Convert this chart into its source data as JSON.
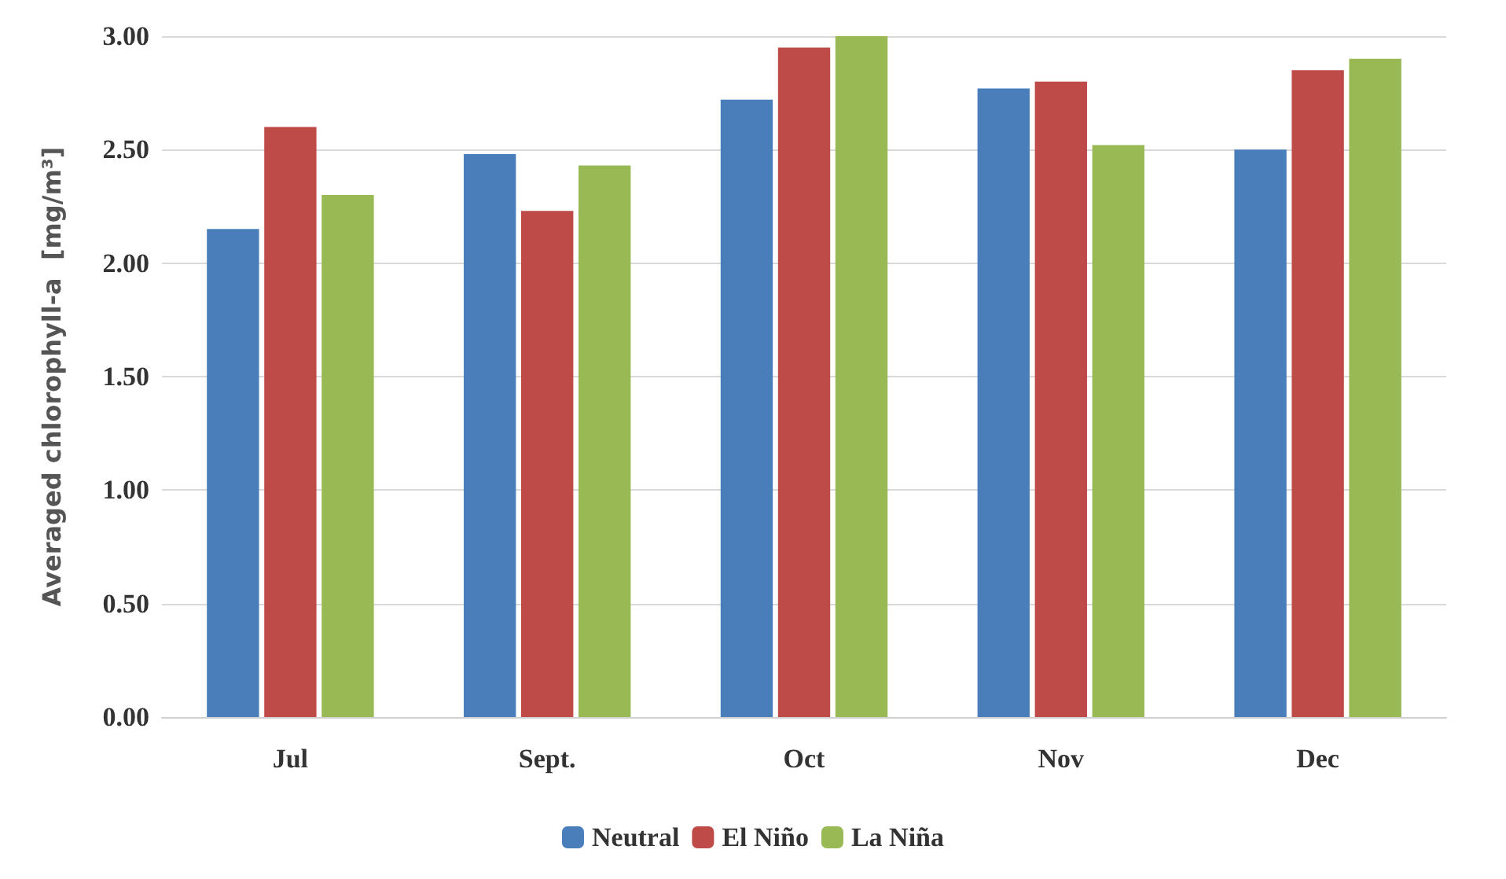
{
  "chart_data": {
    "type": "bar",
    "ylabel": "Averaged chlorophyll-a  [mg/m³]",
    "categories": [
      "Jul",
      "Sept.",
      "Oct",
      "Nov",
      "Dec"
    ],
    "series": [
      {
        "name": "Neutral",
        "color": "#4a7ebb",
        "values": [
          2.15,
          2.48,
          2.72,
          2.77,
          2.5
        ]
      },
      {
        "name": "El Niño",
        "color": "#be4b48",
        "values": [
          2.6,
          2.23,
          2.95,
          2.8,
          2.85
        ]
      },
      {
        "name": "La Niña",
        "color": "#98b954",
        "values": [
          2.3,
          2.43,
          3.0,
          2.52,
          2.9
        ]
      }
    ],
    "ylim": [
      0,
      3
    ],
    "yticks": [
      {
        "value": 0,
        "label": "0.00"
      },
      {
        "value": 0.5,
        "label": "0.50"
      },
      {
        "value": 1,
        "label": "1.00"
      },
      {
        "value": 1.5,
        "label": "1.50"
      },
      {
        "value": 2,
        "label": "2.00"
      },
      {
        "value": 2.5,
        "label": "2.50"
      },
      {
        "value": 3,
        "label": "3.00"
      }
    ],
    "grid": "y",
    "legend": "bottom"
  }
}
